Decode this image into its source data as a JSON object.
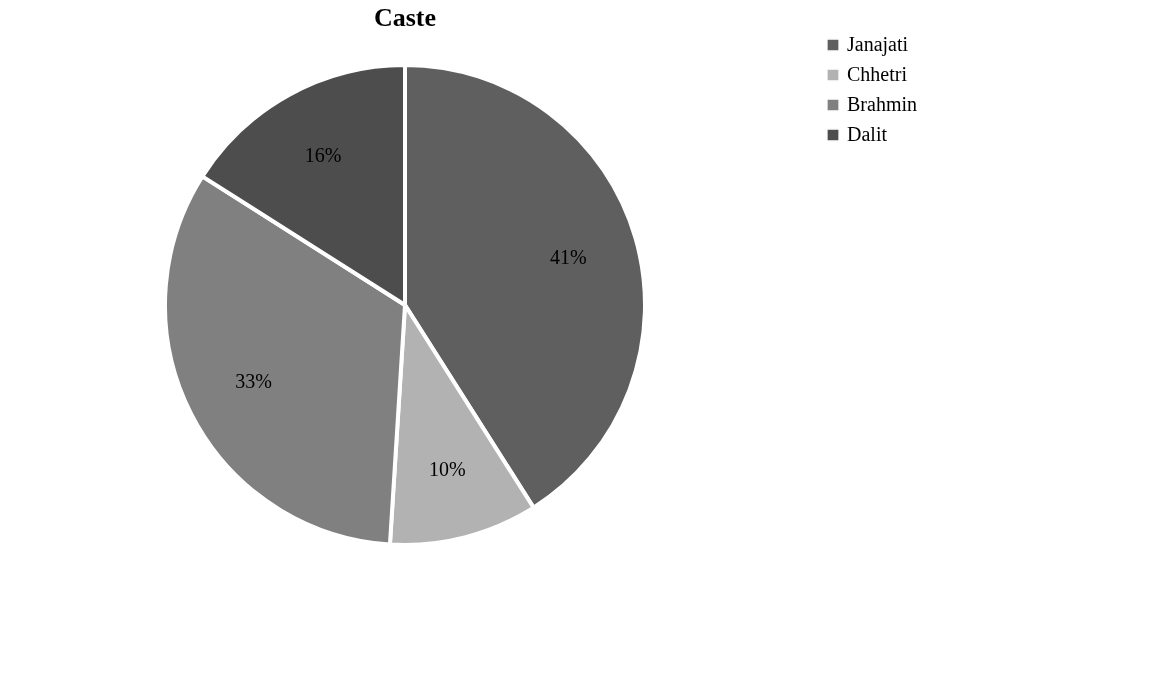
{
  "chart_data": {
    "type": "pie",
    "title": "Caste",
    "categories": [
      "Janajati",
      "Chhetri",
      "Brahmin",
      "Dalit"
    ],
    "values": [
      41,
      10,
      33,
      16
    ],
    "colors": [
      "#5f5f5f",
      "#b2b2b2",
      "#808080",
      "#4d4d4d"
    ],
    "value_labels": [
      "41%",
      "10%",
      "33%",
      "16%"
    ],
    "legend": "right"
  }
}
